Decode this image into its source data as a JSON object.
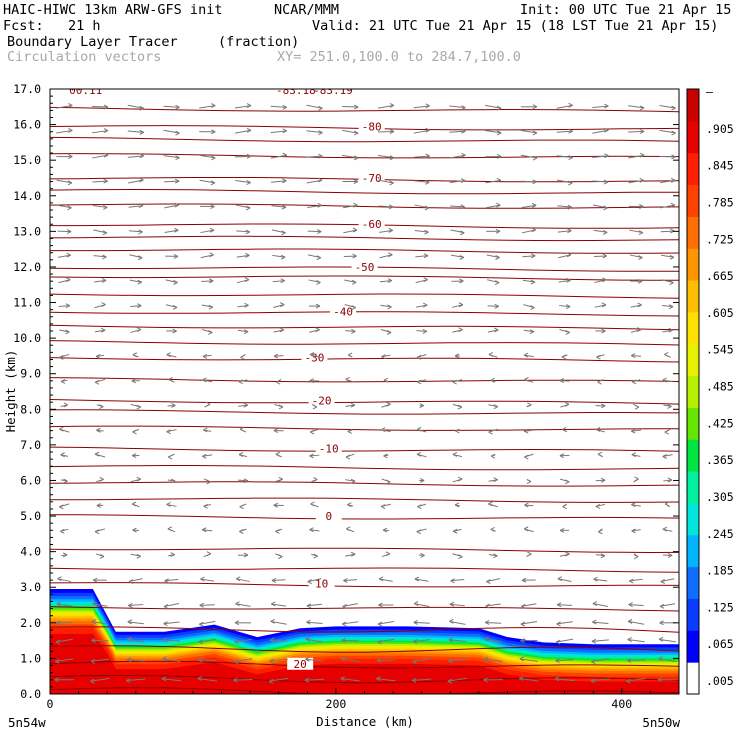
{
  "header": {
    "model": "HAIC-HIWC 13km ARW-GFS init",
    "center": "NCAR/MMM",
    "init": "Init: 00 UTC Tue 21 Apr 15",
    "fcst": "Fcst:   21 h",
    "valid": "Valid: 21 UTC Tue 21 Apr 15 (18 LST Tue 21 Apr 15)",
    "field": "Boundary Layer Tracer",
    "field_units": "(fraction)",
    "overlay": "Circulation vectors",
    "xy": "XY= 251.0,100.0 to 284.7,100.0"
  },
  "chart_data": {
    "type": "heatmap",
    "subtype": "vertical cross-section with temperature contours and circulation vectors",
    "xlabel": "Distance (km)",
    "ylabel": "Height (km)",
    "xlim": [
      0,
      440
    ],
    "ylim": [
      0,
      17
    ],
    "x_ticks": [
      "0",
      "200",
      "400"
    ],
    "x_tick_values": [
      0,
      200,
      400
    ],
    "x_end_labels": [
      "5n54w",
      "5n50w"
    ],
    "y_ticks": [
      "0.0",
      "1.0",
      "2.0",
      "3.0",
      "4.0",
      "5.0",
      "6.0",
      "7.0",
      "8.0",
      "9.0",
      "10.0",
      "11.0",
      "12.0",
      "13.0",
      "14.0",
      "15.0",
      "16.0",
      "17.0"
    ],
    "colorbar": {
      "labels": [
        ".005",
        ".065",
        ".125",
        ".185",
        ".245",
        ".305",
        ".365",
        ".425",
        ".485",
        ".545",
        ".605",
        ".665",
        ".725",
        ".785",
        ".845",
        ".905",
        "–"
      ],
      "colors": [
        "#ffffff",
        "#0000ff",
        "#0a3cff",
        "#0f6eff",
        "#00b4ff",
        "#00e6dc",
        "#00f0a0",
        "#00e640",
        "#64e600",
        "#b4f000",
        "#e6f000",
        "#ffe100",
        "#ffbe00",
        "#ff9600",
        "#ff6e00",
        "#ff4100",
        "#ff1e00",
        "#e60000",
        "#c80000"
      ]
    },
    "tracer_top_profile": [
      {
        "x": 0,
        "z": 2.95
      },
      {
        "x": 30,
        "z": 2.95
      },
      {
        "x": 40,
        "z": 2.2
      },
      {
        "x": 46,
        "z": 1.75
      },
      {
        "x": 80,
        "z": 1.75
      },
      {
        "x": 115,
        "z": 1.95
      },
      {
        "x": 145,
        "z": 1.6
      },
      {
        "x": 175,
        "z": 1.85
      },
      {
        "x": 200,
        "z": 1.9
      },
      {
        "x": 250,
        "z": 1.9
      },
      {
        "x": 300,
        "z": 1.85
      },
      {
        "x": 320,
        "z": 1.6
      },
      {
        "x": 345,
        "z": 1.45
      },
      {
        "x": 380,
        "z": 1.4
      },
      {
        "x": 440,
        "z": 1.4
      }
    ],
    "tracer_layers": [
      {
        "level": 0.065,
        "thickness_km": 0.35
      },
      {
        "level": 0.245,
        "thickness_km": 0.2
      },
      {
        "level": 0.485,
        "thickness_km": 0.18
      },
      {
        "level": 0.725,
        "thickness_km": 0.18
      },
      {
        "level": 0.905,
        "thickness_km": 0.25
      }
    ],
    "temperature_contours": [
      {
        "label": "20",
        "z": 0.85,
        "label_x": 175
      },
      {
        "label": "10",
        "z": 3.1,
        "label_x": 190
      },
      {
        "label": "0",
        "z": 5.0,
        "label_x": 195
      },
      {
        "label": "-10",
        "z": 6.9,
        "label_x": 195
      },
      {
        "label": "-20",
        "z": 8.25,
        "label_x": 190
      },
      {
        "label": "-30",
        "z": 9.45,
        "label_x": 185
      },
      {
        "label": "-40",
        "z": 10.75,
        "label_x": 205
      },
      {
        "label": "-50",
        "z": 12.0,
        "label_x": 220
      },
      {
        "label": "-60",
        "z": 13.2,
        "label_x": 225
      },
      {
        "label": "-70",
        "z": 14.5,
        "label_x": 225
      },
      {
        "label": "-80",
        "z": 15.95,
        "label_x": 225
      }
    ],
    "unlabeled_contour_heights": [
      0.1,
      0.45,
      1.3,
      1.85,
      2.45,
      3.55,
      4.1,
      5.5,
      5.95,
      6.4,
      7.5,
      7.95,
      8.85,
      9.9,
      10.35,
      11.25,
      11.75,
      12.5,
      12.85,
      13.75,
      14.15,
      15.15,
      15.6,
      16.45
    ],
    "top_labels": [
      "00.11",
      "-83.18",
      "-83.19"
    ],
    "vector_columns_x": [
      10,
      35,
      60,
      85,
      110,
      135,
      160,
      185,
      210,
      235,
      260,
      285,
      310,
      335,
      360,
      385,
      410,
      432
    ],
    "vector_levels_z": [
      0.4,
      0.95,
      1.5,
      2.0,
      2.5,
      3.2,
      3.9,
      4.6,
      5.3,
      6.0,
      6.7,
      7.4,
      8.1,
      8.8,
      9.5,
      10.2,
      10.9,
      11.6,
      12.3,
      13.0,
      13.7,
      14.4,
      15.1,
      15.8,
      16.5
    ]
  }
}
